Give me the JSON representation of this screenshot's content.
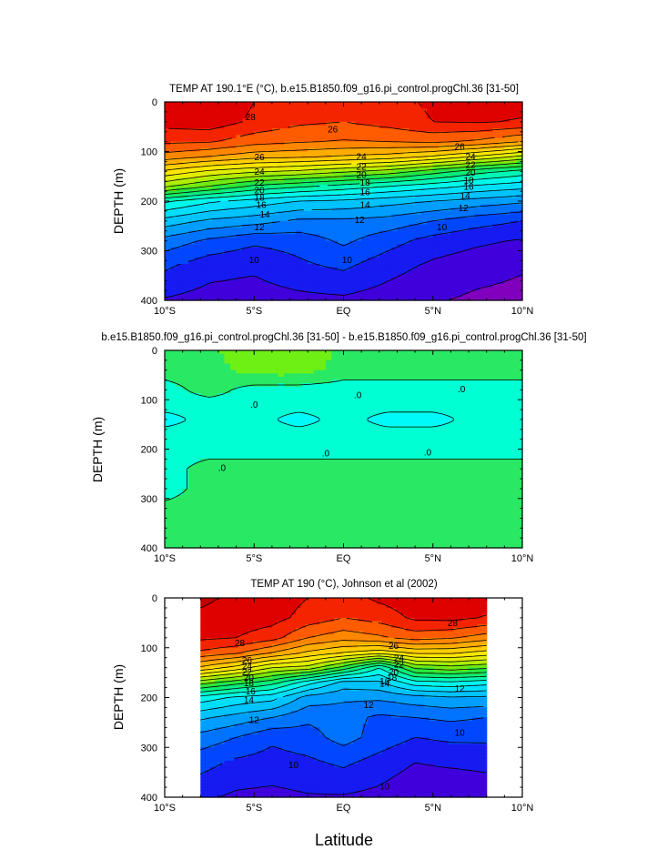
{
  "figure": {
    "xlabel": "Latitude"
  },
  "chart_data": [
    {
      "type": "heatmap",
      "title": "TEMP AT 190.1°E (°C), b.e15.B1850.f09_g16.pi_control.progChl.36 [31-50]",
      "ylabel": "DEPTH (m)",
      "x_tick_labels": [
        "10°S",
        "5°S",
        "EQ",
        "5°N",
        "10°N"
      ],
      "x_ticks": [
        -10,
        -5,
        0,
        5,
        10
      ],
      "xlim": [
        -10,
        10
      ],
      "y_ticks": [
        0,
        100,
        200,
        300,
        400
      ],
      "ylim": [
        0,
        400
      ],
      "y_reversed": true,
      "x_extent": [
        -10,
        10
      ],
      "x": [
        -10,
        -7.5,
        -5,
        -2.5,
        0,
        2.5,
        5,
        7.5,
        10
      ],
      "depth": [
        0,
        40,
        80,
        110,
        140,
        170,
        200,
        240,
        280,
        330,
        400
      ],
      "values": [
        [
          28.6,
          28.8,
          28.0,
          27.4,
          27.3,
          27.6,
          28.2,
          28.4,
          28.4
        ],
        [
          28.4,
          28.6,
          27.8,
          27.2,
          27.0,
          27.4,
          28.0,
          28.1,
          27.9
        ],
        [
          27.2,
          27.1,
          26.4,
          26.1,
          25.9,
          26.0,
          26.2,
          25.8,
          25.0
        ],
        [
          25.6,
          25.0,
          24.4,
          24.2,
          23.9,
          23.6,
          22.9,
          21.9,
          20.8
        ],
        [
          22.8,
          21.8,
          21.2,
          20.8,
          20.2,
          19.6,
          18.5,
          17.4,
          16.6
        ],
        [
          20.2,
          19.0,
          17.8,
          17.2,
          16.6,
          16.0,
          15.4,
          14.8,
          14.4
        ],
        [
          16.2,
          15.2,
          14.6,
          14.0,
          13.8,
          13.4,
          13.0,
          12.6,
          12.2
        ],
        [
          13.6,
          12.8,
          12.4,
          11.8,
          11.8,
          11.6,
          11.0,
          10.4,
          10.0
        ],
        [
          11.6,
          10.8,
          10.2,
          10.4,
          11.2,
          10.4,
          9.6,
          9.2,
          8.9
        ],
        [
          10.2,
          9.4,
          9.2,
          9.8,
          10.2,
          9.4,
          8.8,
          8.4,
          8.1
        ],
        [
          8.9,
          8.6,
          8.5,
          8.7,
          8.8,
          8.5,
          8.1,
          7.8,
          7.7
        ]
      ],
      "contour_labels": [
        {
          "text": "28",
          "x": -5.2,
          "y": 30
        },
        {
          "text": "26",
          "x": -4.7,
          "y": 111
        },
        {
          "text": "24",
          "x": -4.7,
          "y": 140
        },
        {
          "text": "22",
          "x": -4.7,
          "y": 162
        },
        {
          "text": "20",
          "x": -4.7,
          "y": 178
        },
        {
          "text": "18",
          "x": -4.7,
          "y": 193
        },
        {
          "text": "16",
          "x": -4.6,
          "y": 207
        },
        {
          "text": "14",
          "x": -4.4,
          "y": 227
        },
        {
          "text": "12",
          "x": -4.7,
          "y": 252
        },
        {
          "text": "10",
          "x": -5.0,
          "y": 318
        },
        {
          "text": "26",
          "x": -0.6,
          "y": 55
        },
        {
          "text": "24",
          "x": 1.0,
          "y": 110
        },
        {
          "text": "22",
          "x": 1.0,
          "y": 130
        },
        {
          "text": "20",
          "x": 1.0,
          "y": 147
        },
        {
          "text": "18",
          "x": 1.2,
          "y": 162
        },
        {
          "text": "16",
          "x": 1.2,
          "y": 182
        },
        {
          "text": "14",
          "x": 1.2,
          "y": 207
        },
        {
          "text": "12",
          "x": 0.9,
          "y": 238
        },
        {
          "text": "10",
          "x": 0.2,
          "y": 318
        },
        {
          "text": "26",
          "x": 6.5,
          "y": 90
        },
        {
          "text": "24",
          "x": 7.1,
          "y": 110
        },
        {
          "text": "22",
          "x": 7.1,
          "y": 127
        },
        {
          "text": "20",
          "x": 7.1,
          "y": 142
        },
        {
          "text": "18",
          "x": 7.0,
          "y": 158
        },
        {
          "text": "16",
          "x": 7.0,
          "y": 171
        },
        {
          "text": "14",
          "x": 6.8,
          "y": 189
        },
        {
          "text": "12",
          "x": 6.7,
          "y": 214
        },
        {
          "text": "10",
          "x": 5.5,
          "y": 252
        }
      ]
    },
    {
      "type": "heatmap",
      "title": "b.e15.B1850.f09_g16.pi_control.progChl.36 [31-50] - b.e15.B1850.f09_g16.pi_control.progChl.36 [31-50]",
      "ylabel": "DEPTH (m)",
      "x_tick_labels": [
        "10°S",
        "5°S",
        "EQ",
        "5°N",
        "10°N"
      ],
      "x_ticks": [
        -10,
        -5,
        0,
        5,
        10
      ],
      "xlim": [
        -10,
        10
      ],
      "y_ticks": [
        0,
        100,
        200,
        300,
        400
      ],
      "ylim": [
        0,
        400
      ],
      "y_reversed": true,
      "x_extent": [
        -10,
        10
      ],
      "x": [
        -10,
        -7.5,
        -5,
        -2.5,
        0,
        2.5,
        5,
        7.5,
        10
      ],
      "depth": [
        0,
        40,
        80,
        110,
        140,
        170,
        200,
        240,
        280,
        330,
        400
      ],
      "values": [
        [
          0.0,
          0.0,
          0.02,
          0.02,
          0.0,
          0.0,
          0.0,
          0.0,
          0.0
        ],
        [
          0.0,
          0.0,
          0.01,
          0.01,
          0.0,
          0.0,
          0.0,
          0.0,
          0.0
        ],
        [
          -0.01,
          0.0,
          -0.01,
          -0.01,
          -0.01,
          -0.01,
          -0.01,
          -0.01,
          -0.01
        ],
        [
          -0.01,
          -0.01,
          -0.01,
          -0.01,
          -0.01,
          -0.01,
          -0.01,
          -0.01,
          -0.01
        ],
        [
          -0.02,
          -0.01,
          -0.01,
          -0.02,
          -0.01,
          -0.02,
          -0.02,
          -0.01,
          -0.01
        ],
        [
          -0.01,
          -0.01,
          -0.01,
          -0.01,
          -0.01,
          -0.01,
          -0.01,
          -0.01,
          -0.01
        ],
        [
          -0.01,
          -0.01,
          -0.01,
          -0.01,
          -0.01,
          -0.01,
          -0.01,
          -0.01,
          -0.01
        ],
        [
          -0.01,
          0.0,
          0.0,
          0.0,
          0.0,
          0.0,
          0.0,
          0.0,
          0.0
        ],
        [
          -0.01,
          0.0,
          0.0,
          0.0,
          0.0,
          0.0,
          0.0,
          0.0,
          0.0
        ],
        [
          0.0,
          0.0,
          0.0,
          0.0,
          0.0,
          0.0,
          0.0,
          0.0,
          0.0
        ],
        [
          0.0,
          0.0,
          0.0,
          0.0,
          0.0,
          0.0,
          0.0,
          0.0,
          0.0
        ]
      ],
      "contour_labels": [
        {
          "text": ".0",
          "x": -5.0,
          "y": 110
        },
        {
          "text": ".0",
          "x": 0.8,
          "y": 90
        },
        {
          "text": ".0",
          "x": 6.6,
          "y": 78
        },
        {
          "text": ".0",
          "x": -6.8,
          "y": 238
        },
        {
          "text": ".0",
          "x": -1.0,
          "y": 208
        },
        {
          "text": ".0",
          "x": 4.7,
          "y": 206
        }
      ]
    },
    {
      "type": "heatmap",
      "title": "TEMP AT 190 (°C), Johnson et al (2002)",
      "ylabel": "DEPTH (m)",
      "x_tick_labels": [
        "10°S",
        "5°S",
        "EQ",
        "5°N",
        "10°N"
      ],
      "x_ticks": [
        -10,
        -5,
        0,
        5,
        10
      ],
      "xlim": [
        -10,
        10
      ],
      "y_ticks": [
        0,
        100,
        200,
        300,
        400
      ],
      "ylim": [
        0,
        400
      ],
      "y_reversed": true,
      "x_extent": [
        -8,
        8
      ],
      "x": [
        -8,
        -6,
        -4,
        -2,
        0,
        2,
        4,
        6,
        8
      ],
      "depth": [
        0,
        40,
        80,
        110,
        140,
        170,
        200,
        240,
        280,
        330,
        400
      ],
      "values": [
        [
          29.2,
          28.8,
          28.6,
          28.0,
          27.6,
          28.2,
          28.6,
          28.8,
          28.6
        ],
        [
          28.8,
          28.6,
          28.4,
          27.6,
          27.0,
          27.4,
          28.2,
          28.3,
          27.9
        ],
        [
          28.2,
          28.0,
          27.4,
          26.0,
          25.4,
          25.8,
          26.4,
          26.1,
          25.5
        ],
        [
          26.8,
          26.2,
          25.0,
          23.8,
          23.0,
          22.4,
          23.2,
          23.2,
          22.6
        ],
        [
          23.8,
          22.6,
          21.0,
          20.6,
          18.6,
          16.0,
          19.2,
          19.6,
          19.2
        ],
        [
          19.4,
          18.4,
          17.4,
          15.4,
          13.6,
          13.8,
          15.6,
          15.8,
          15.4
        ],
        [
          15.6,
          14.8,
          14.4,
          12.6,
          12.2,
          12.2,
          12.6,
          12.9,
          12.8
        ],
        [
          13.2,
          12.6,
          12.0,
          11.2,
          11.4,
          10.8,
          11.0,
          11.2,
          11.0
        ],
        [
          11.6,
          11.0,
          10.2,
          10.6,
          11.4,
          10.6,
          10.0,
          10.2,
          10.2
        ],
        [
          10.4,
          9.8,
          9.6,
          9.8,
          10.2,
          9.6,
          9.0,
          9.2,
          9.3
        ],
        [
          9.2,
          8.8,
          8.7,
          8.9,
          8.9,
          8.7,
          8.2,
          8.0,
          8.3
        ]
      ],
      "contour_labels": [
        {
          "text": "28",
          "x": -5.8,
          "y": 90
        },
        {
          "text": "26",
          "x": -5.4,
          "y": 125
        },
        {
          "text": "24",
          "x": -5.4,
          "y": 137
        },
        {
          "text": "22",
          "x": -5.4,
          "y": 149
        },
        {
          "text": "20",
          "x": -5.3,
          "y": 160
        },
        {
          "text": "18",
          "x": -5.3,
          "y": 171
        },
        {
          "text": "16",
          "x": -5.2,
          "y": 187
        },
        {
          "text": "14",
          "x": -5.3,
          "y": 205
        },
        {
          "text": "12",
          "x": -5.0,
          "y": 245
        },
        {
          "text": "10",
          "x": -2.8,
          "y": 335
        },
        {
          "text": "26",
          "x": 2.8,
          "y": 96
        },
        {
          "text": "24",
          "x": 3.1,
          "y": 121
        },
        {
          "text": "22",
          "x": 3.1,
          "y": 133
        },
        {
          "text": "20",
          "x": 2.8,
          "y": 149
        },
        {
          "text": "18",
          "x": 2.7,
          "y": 160
        },
        {
          "text": "16",
          "x": 2.3,
          "y": 167
        },
        {
          "text": "14",
          "x": 2.3,
          "y": 172
        },
        {
          "text": "12",
          "x": 1.4,
          "y": 215
        },
        {
          "text": "10",
          "x": 2.3,
          "y": 378
        },
        {
          "text": "28",
          "x": 6.1,
          "y": 50
        },
        {
          "text": "12",
          "x": 6.5,
          "y": 182
        },
        {
          "text": "10",
          "x": 6.5,
          "y": 270
        }
      ]
    }
  ]
}
